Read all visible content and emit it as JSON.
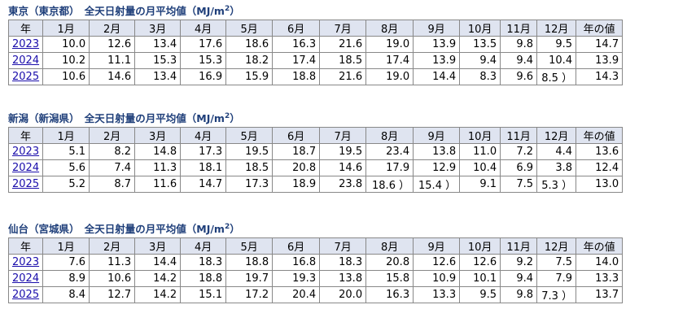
{
  "header_cols": [
    "年",
    "1月",
    "2月",
    "3月",
    "4月",
    "5月",
    "6月",
    "7月",
    "8月",
    "9月",
    "10月",
    "11月",
    "12月",
    "年の値"
  ],
  "sections": [
    {
      "title": "東京（東京都）　全天日射量の月平均値（MJ/m",
      "title_sup": "2",
      "title_close": "）",
      "rows": [
        {
          "year": "2023",
          "values": [
            "10.0",
            "12.6",
            "13.4",
            "17.6",
            "18.6",
            "16.3",
            "21.6",
            "19.0",
            "13.9",
            "13.5",
            "9.8",
            "9.5",
            "14.7"
          ]
        },
        {
          "year": "2024",
          "values": [
            "10.2",
            "11.1",
            "15.3",
            "15.3",
            "18.2",
            "17.4",
            "18.5",
            "17.4",
            "13.9",
            "9.4",
            "9.4",
            "10.4",
            "13.9"
          ]
        },
        {
          "year": "2025",
          "values": [
            "10.6",
            "14.6",
            "13.4",
            "16.9",
            "15.9",
            "18.8",
            "21.6",
            "19.0",
            "14.4",
            "8.3",
            "9.6",
            "8.5 ）",
            "14.3"
          ]
        }
      ]
    },
    {
      "title": "新潟（新潟県）　全天日射量の月平均値（MJ/m",
      "title_sup": "2",
      "title_close": "）",
      "rows": [
        {
          "year": "2023",
          "values": [
            "5.1",
            "8.2",
            "14.8",
            "17.3",
            "19.5",
            "18.7",
            "19.5",
            "23.4",
            "13.8",
            "11.0",
            "7.2",
            "4.4",
            "13.6"
          ]
        },
        {
          "year": "2024",
          "values": [
            "5.6",
            "7.4",
            "11.3",
            "18.1",
            "18.5",
            "20.8",
            "14.6",
            "17.9",
            "12.9",
            "10.4",
            "6.9",
            "3.8",
            "12.4"
          ]
        },
        {
          "year": "2025",
          "values": [
            "5.2",
            "8.7",
            "11.6",
            "14.7",
            "17.3",
            "18.9",
            "23.8",
            "18.6 ）",
            "15.4 ）",
            "9.1",
            "7.5",
            "5.3 ）",
            "13.0"
          ]
        }
      ]
    },
    {
      "title": "仙台（宮城県）　全天日射量の月平均値（MJ/m",
      "title_sup": "2",
      "title_close": "）",
      "rows": [
        {
          "year": "2023",
          "values": [
            "7.6",
            "11.3",
            "14.4",
            "18.3",
            "18.8",
            "16.8",
            "18.3",
            "20.8",
            "12.6",
            "12.6",
            "9.2",
            "7.5",
            "14.0"
          ]
        },
        {
          "year": "2024",
          "values": [
            "8.9",
            "10.6",
            "14.2",
            "18.8",
            "19.7",
            "19.3",
            "13.8",
            "15.8",
            "10.9",
            "10.1",
            "9.4",
            "7.9",
            "13.3"
          ]
        },
        {
          "year": "2025",
          "values": [
            "8.4",
            "12.7",
            "14.2",
            "15.1",
            "17.2",
            "20.4",
            "20.0",
            "16.3",
            "13.3",
            "9.5",
            "9.8",
            "7.3 ）",
            "13.7"
          ]
        }
      ]
    }
  ]
}
